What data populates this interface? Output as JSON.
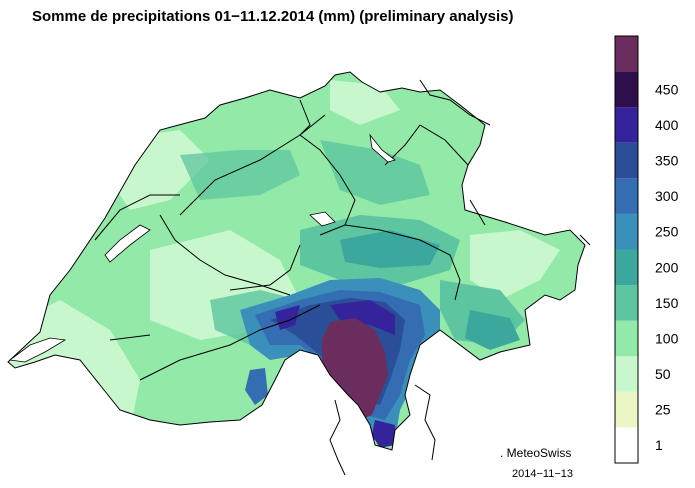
{
  "title": "Somme de precipitations 01−11.12.2014 (mm)  (preliminary analysis)",
  "credit": ". MeteoSwiss",
  "date": "2014−11−13",
  "legend": {
    "bins": [
      {
        "label": "1",
        "color": "#ffffff"
      },
      {
        "label": "25",
        "color": "#eaf7c4"
      },
      {
        "label": "50",
        "color": "#c9f7cd"
      },
      {
        "label": "100",
        "color": "#92e9a8"
      },
      {
        "label": "150",
        "color": "#5dc59f"
      },
      {
        "label": "200",
        "color": "#3ca89d"
      },
      {
        "label": "250",
        "color": "#3a8fbb"
      },
      {
        "label": "300",
        "color": "#356db3"
      },
      {
        "label": "350",
        "color": "#2a4e98"
      },
      {
        "label": "400",
        "color": "#34239a"
      },
      {
        "label": "450",
        "color": "#2f0e4e"
      },
      {
        "label": "",
        "color": "#6b2d5e"
      }
    ]
  }
}
